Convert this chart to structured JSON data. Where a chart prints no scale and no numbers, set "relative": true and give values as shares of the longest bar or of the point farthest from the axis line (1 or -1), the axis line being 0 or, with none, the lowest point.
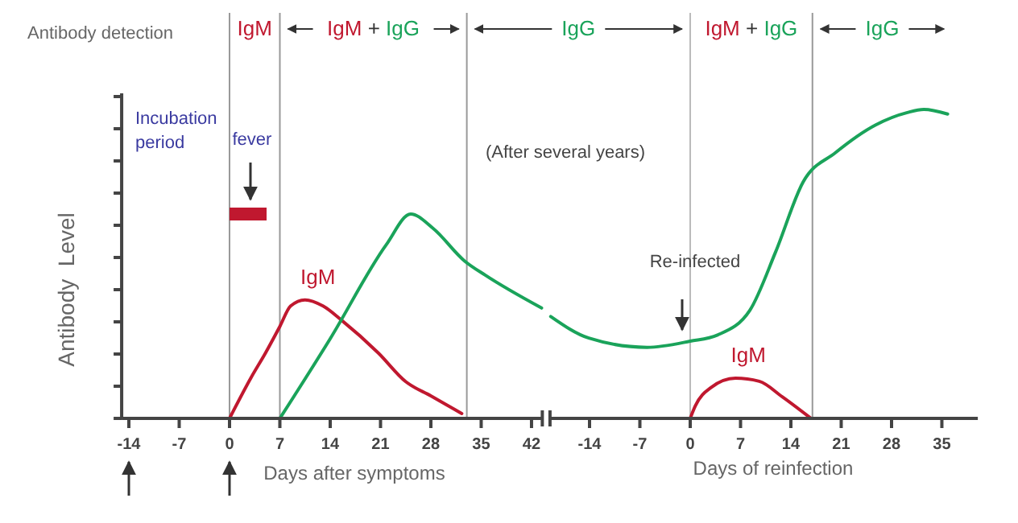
{
  "chart_data": [
    {
      "type": "line",
      "relative": true,
      "xlabel": "Days after symptoms",
      "ylabel": "Antibody  Level",
      "xlim": [
        -15,
        43.5
      ],
      "xticks": [
        -14,
        -7,
        0,
        7,
        14,
        21,
        28,
        35,
        42
      ],
      "series": [
        {
          "name": "IgM",
          "color": "#c0182f",
          "x": [
            0,
            3,
            5,
            7,
            8.5,
            10.5,
            13,
            15.6,
            20.7,
            24.5,
            28,
            32.3
          ],
          "values": [
            0,
            0.2,
            0.32,
            0.45,
            0.55,
            0.58,
            0.55,
            0.48,
            0.32,
            0.18,
            0.11,
            0.024
          ]
        },
        {
          "color": "#1aa35a",
          "x": [
            7,
            14,
            21.8,
            25.2,
            28.3,
            32.7,
            35.6,
            43.4
          ],
          "values": [
            0,
            0.39,
            0.85,
            1,
            0.93,
            0.77,
            0.7,
            0.54
          ]
        }
      ],
      "ref_lines": [
        {
          "axis": "x",
          "value": 0,
          "label": "IgM",
          "color": "#999999"
        },
        {
          "axis": "x",
          "value": 7,
          "label": "IgM + IgG",
          "color": "#999999"
        },
        {
          "axis": "x",
          "value": 33,
          "label": "IgG",
          "color": "#999999"
        }
      ],
      "annotations": [
        "Antibody detection",
        "Incubation period",
        "fever"
      ]
    },
    {
      "type": "line",
      "relative": true,
      "xlabel": "Days of reinfection",
      "xlim": [
        -19.5,
        40
      ],
      "xticks": [
        -14,
        -7,
        0,
        7,
        14,
        21,
        28,
        35
      ],
      "series": [
        {
          "color": "#1aa35a",
          "x": [
            -19.4,
            -14.1,
            -6,
            0,
            3.8,
            8.3,
            11.9,
            15.7,
            20.2,
            25.8,
            30.2,
            32.5,
            35.8
          ],
          "values": [
            0.33,
            0.26,
            0.23,
            0.25,
            0.27,
            0.35,
            0.54,
            0.765,
            0.86,
            0.95,
            0.99,
            1,
            0.985
          ]
        },
        {
          "name": "IgM",
          "color": "#c0182f",
          "x": [
            0,
            0.7,
            2.9,
            6.3,
            9.6,
            12.8,
            16.8
          ],
          "values": [
            0,
            0.04,
            0.1,
            0.13,
            0.12,
            0.07,
            0
          ]
        }
      ],
      "ref_lines": [
        {
          "axis": "x",
          "value": 0,
          "label": "IgM + IgG",
          "color": "#bbbbbb"
        },
        {
          "axis": "x",
          "value": 17,
          "label": "IgG",
          "color": "#999999"
        }
      ],
      "annotations": [
        "(After several years)",
        "Re-infected"
      ]
    }
  ]
}
